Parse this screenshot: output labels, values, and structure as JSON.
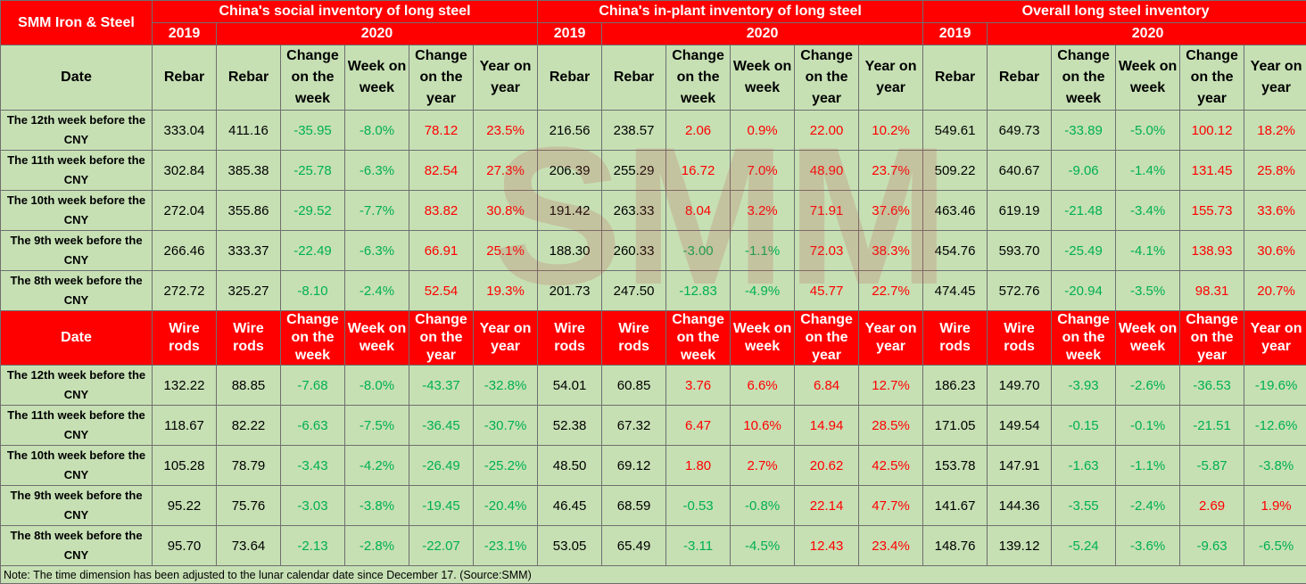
{
  "corner_label": "SMM Iron & Steel",
  "sections": [
    "China's social inventory of long steel",
    "China's in-plant inventory of long steel",
    "Overall long steel inventory"
  ],
  "years": {
    "prev": "2019",
    "curr": "2020"
  },
  "date_header": "Date",
  "rebar_headers": [
    "Rebar",
    "Rebar",
    "Change on the week",
    "Week on week",
    "Change on the year",
    "Year on year"
  ],
  "wire_headers": [
    "Wire rods",
    "Wire rods",
    "Change on the week",
    "Week on week",
    "Change on the year",
    "Year on year"
  ],
  "rebar_rows": [
    {
      "date": "The 12th week before the CNY",
      "values": [
        "333.04",
        "411.16",
        "-35.95",
        "-8.0%",
        "78.12",
        "23.5%",
        "216.56",
        "238.57",
        "2.06",
        "0.9%",
        "22.00",
        "10.2%",
        "549.61",
        "649.73",
        "-33.89",
        "-5.0%",
        "100.12",
        "18.2%"
      ]
    },
    {
      "date": "The 11th week before the CNY",
      "values": [
        "302.84",
        "385.38",
        "-25.78",
        "-6.3%",
        "82.54",
        "27.3%",
        "206.39",
        "255.29",
        "16.72",
        "7.0%",
        "48.90",
        "23.7%",
        "509.22",
        "640.67",
        "-9.06",
        "-1.4%",
        "131.45",
        "25.8%"
      ]
    },
    {
      "date": "The 10th week before the CNY",
      "values": [
        "272.04",
        "355.86",
        "-29.52",
        "-7.7%",
        "83.82",
        "30.8%",
        "191.42",
        "263.33",
        "8.04",
        "3.2%",
        "71.91",
        "37.6%",
        "463.46",
        "619.19",
        "-21.48",
        "-3.4%",
        "155.73",
        "33.6%"
      ]
    },
    {
      "date": "The 9th week before the CNY",
      "values": [
        "266.46",
        "333.37",
        "-22.49",
        "-6.3%",
        "66.91",
        "25.1%",
        "188.30",
        "260.33",
        "-3.00",
        "-1.1%",
        "72.03",
        "38.3%",
        "454.76",
        "593.70",
        "-25.49",
        "-4.1%",
        "138.93",
        "30.6%"
      ]
    },
    {
      "date": "The 8th week before the CNY",
      "values": [
        "272.72",
        "325.27",
        "-8.10",
        "-2.4%",
        "52.54",
        "19.3%",
        "201.73",
        "247.50",
        "-12.83",
        "-4.9%",
        "45.77",
        "22.7%",
        "474.45",
        "572.76",
        "-20.94",
        "-3.5%",
        "98.31",
        "20.7%"
      ]
    }
  ],
  "wire_rows": [
    {
      "date": "The 12th week before the CNY",
      "values": [
        "132.22",
        "88.85",
        "-7.68",
        "-8.0%",
        "-43.37",
        "-32.8%",
        "54.01",
        "60.85",
        "3.76",
        "6.6%",
        "6.84",
        "12.7%",
        "186.23",
        "149.70",
        "-3.93",
        "-2.6%",
        "-36.53",
        "-19.6%"
      ]
    },
    {
      "date": "The 11th week before the CNY",
      "values": [
        "118.67",
        "82.22",
        "-6.63",
        "-7.5%",
        "-36.45",
        "-30.7%",
        "52.38",
        "67.32",
        "6.47",
        "10.6%",
        "14.94",
        "28.5%",
        "171.05",
        "149.54",
        "-0.15",
        "-0.1%",
        "-21.51",
        "-12.6%"
      ]
    },
    {
      "date": "The 10th week before the CNY",
      "values": [
        "105.28",
        "78.79",
        "-3.43",
        "-4.2%",
        "-26.49",
        "-25.2%",
        "48.50",
        "69.12",
        "1.80",
        "2.7%",
        "20.62",
        "42.5%",
        "153.78",
        "147.91",
        "-1.63",
        "-1.1%",
        "-5.87",
        "-3.8%"
      ]
    },
    {
      "date": "The 9th week before the CNY",
      "values": [
        "95.22",
        "75.76",
        "-3.03",
        "-3.8%",
        "-19.45",
        "-20.4%",
        "46.45",
        "68.59",
        "-0.53",
        "-0.8%",
        "22.14",
        "47.7%",
        "141.67",
        "144.36",
        "-3.55",
        "-2.4%",
        "2.69",
        "1.9%"
      ]
    },
    {
      "date": "The 8th week before the CNY",
      "values": [
        "95.70",
        "73.64",
        "-2.13",
        "-2.8%",
        "-22.07",
        "-23.1%",
        "53.05",
        "65.49",
        "-3.11",
        "-4.5%",
        "12.43",
        "23.4%",
        "148.76",
        "139.12",
        "-5.24",
        "-3.6%",
        "-9.63",
        "-6.5%"
      ]
    }
  ],
  "note": "Note: The time dimension has been adjusted to the lunar calendar date since December 17. (Source:SMM)",
  "watermark": "SMM",
  "colors": {
    "header_red": "#ff0000",
    "body_green": "#c6e0b4",
    "positive": "#ff0000",
    "negative": "#00b050"
  }
}
